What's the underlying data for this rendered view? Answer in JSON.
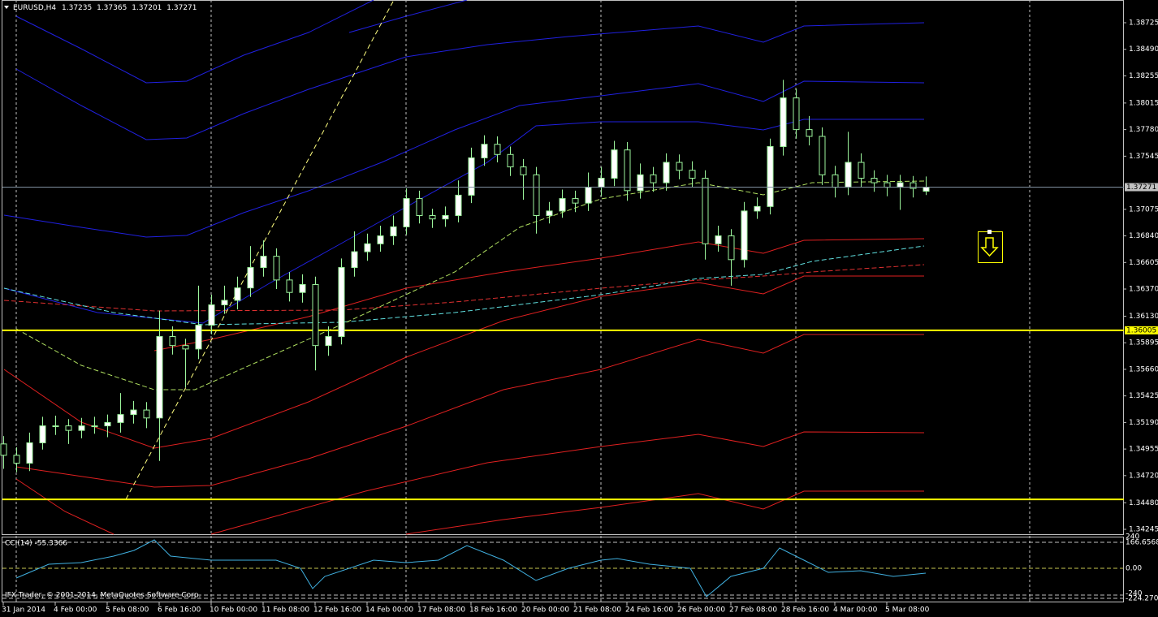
{
  "chart_data": {
    "type": "candlestick",
    "title": "EURUSD,H4",
    "categories": [
      "31 Jan 2014",
      "4 Feb 00:00",
      "5 Feb 08:00",
      "6 Feb 16:00",
      "10 Feb 00:00",
      "11 Feb 08:00",
      "12 Feb 16:00",
      "14 Feb 00:00",
      "17 Feb 08:00",
      "18 Feb 16:00",
      "20 Feb 00:00",
      "21 Feb 08:00",
      "24 Feb 16:00",
      "26 Feb 00:00",
      "27 Feb 08:00",
      "28 Feb 16:00",
      "4 Mar 00:00",
      "5 Mar 08:00"
    ],
    "open": [
      1.35,
      1.349,
      1.3483,
      1.3501,
      1.3516,
      1.3516,
      1.3512,
      1.3516,
      1.3516,
      1.3519,
      1.3526,
      1.353,
      1.3523,
      1.3595,
      1.3587,
      1.3584,
      1.3605,
      1.3623,
      1.3627,
      1.3638,
      1.3656,
      1.3666,
      1.3645,
      1.3634,
      1.3641,
      1.3587,
      1.3595,
      1.3656,
      1.367,
      1.3677,
      1.3684,
      1.3692,
      1.3717,
      1.3702,
      1.3699,
      1.3702,
      1.372,
      1.3753,
      1.3765,
      1.3756,
      1.3745,
      1.3738,
      1.3702,
      1.3706,
      1.3717,
      1.3713,
      1.3727,
      1.3735,
      1.376,
      1.3724,
      1.3738,
      1.3731,
      1.3749,
      1.3742,
      1.3735,
      1.3677,
      1.3684,
      1.3663,
      1.3706,
      1.371,
      1.3763,
      1.3806,
      1.3778,
      1.3772,
      1.3738,
      1.3727,
      1.3749,
      1.3735,
      1.3731,
      1.3727,
      1.3731,
      1.37235
    ],
    "high": [
      1.3507,
      1.3497,
      1.351,
      1.3524,
      1.3525,
      1.3522,
      1.3523,
      1.3524,
      1.3526,
      1.3545,
      1.3538,
      1.3537,
      1.3618,
      1.3604,
      1.3593,
      1.364,
      1.3632,
      1.364,
      1.3648,
      1.3675,
      1.368,
      1.3673,
      1.3652,
      1.365,
      1.3648,
      1.3604,
      1.3664,
      1.3688,
      1.3686,
      1.3693,
      1.3702,
      1.3726,
      1.3724,
      1.3708,
      1.371,
      1.3733,
      1.3762,
      1.3773,
      1.3772,
      1.3763,
      1.3752,
      1.3745,
      1.3714,
      1.3725,
      1.3724,
      1.374,
      1.3745,
      1.3768,
      1.3767,
      1.3748,
      1.3745,
      1.3757,
      1.3756,
      1.375,
      1.3742,
      1.3693,
      1.369,
      1.3714,
      1.3718,
      1.377,
      1.3822,
      1.3814,
      1.379,
      1.378,
      1.3746,
      1.3776,
      1.3757,
      1.3742,
      1.3738,
      1.3738,
      1.3737,
      1.37365
    ],
    "low": [
      1.3478,
      1.3475,
      1.3476,
      1.3495,
      1.3508,
      1.35,
      1.3505,
      1.3509,
      1.3506,
      1.351,
      1.3518,
      1.3514,
      1.3485,
      1.3579,
      1.355,
      1.3575,
      1.3597,
      1.3615,
      1.3619,
      1.363,
      1.3648,
      1.3637,
      1.3626,
      1.3625,
      1.3565,
      1.3578,
      1.3588,
      1.3648,
      1.3662,
      1.367,
      1.3676,
      1.3685,
      1.3695,
      1.3691,
      1.3692,
      1.3696,
      1.3713,
      1.3746,
      1.3749,
      1.3737,
      1.3716,
      1.3686,
      1.3695,
      1.37,
      1.3705,
      1.3706,
      1.3719,
      1.3728,
      1.3715,
      1.3717,
      1.3723,
      1.3724,
      1.3734,
      1.3727,
      1.3663,
      1.367,
      1.364,
      1.3656,
      1.3699,
      1.3703,
      1.3755,
      1.377,
      1.3764,
      1.3729,
      1.3718,
      1.372,
      1.3727,
      1.3723,
      1.3719,
      1.3707,
      1.3718,
      1.37201
    ],
    "close": [
      1.349,
      1.3483,
      1.3501,
      1.3516,
      1.3516,
      1.3512,
      1.3516,
      1.3516,
      1.3519,
      1.3526,
      1.353,
      1.3523,
      1.3595,
      1.3587,
      1.3584,
      1.3605,
      1.3623,
      1.3627,
      1.3638,
      1.3656,
      1.3666,
      1.3645,
      1.3634,
      1.3641,
      1.3587,
      1.3595,
      1.3656,
      1.367,
      1.3677,
      1.3684,
      1.3692,
      1.3717,
      1.3702,
      1.3699,
      1.3702,
      1.372,
      1.3753,
      1.3765,
      1.3756,
      1.3745,
      1.3738,
      1.3702,
      1.3706,
      1.3717,
      1.3713,
      1.3727,
      1.3735,
      1.376,
      1.3724,
      1.3738,
      1.3731,
      1.3749,
      1.3742,
      1.3735,
      1.3677,
      1.3684,
      1.3663,
      1.3706,
      1.371,
      1.3763,
      1.3806,
      1.3778,
      1.3772,
      1.3738,
      1.3727,
      1.3749,
      1.3735,
      1.3731,
      1.3727,
      1.3731,
      1.3726,
      1.37271
    ],
    "up_color": "#ffffff",
    "down_color": "#000000",
    "wick_color": "#9cf59c",
    "ylim": [
      1.34202,
      1.38926
    ],
    "yticks": [
      1.38725,
      {
        "value": 1.3849,
        "label": "1.38490"
      },
      1.38255,
      1.38015,
      {
        "value": 1.3778,
        "label": "1.37780"
      },
      1.37545,
      1.37075,
      {
        "value": 1.3684,
        "label": "1.36840"
      },
      1.36605,
      {
        "value": 1.3637,
        "label": "1.36370"
      },
      {
        "value": 1.3613,
        "label": "1.36130"
      },
      1.35895,
      {
        "value": 1.3566,
        "label": "1.35660"
      },
      1.35425,
      {
        "value": 1.3519,
        "label": "1.35190"
      },
      1.34955,
      {
        "value": 1.3472,
        "label": "1.34720"
      },
      {
        "value": 1.3448,
        "label": "1.34480"
      },
      1.34245
    ],
    "levels": [
      {
        "value": 1.36005,
        "label": "1.36005"
      },
      {
        "value": 1.3451
      }
    ],
    "level_color": "#ffff00"
  },
  "indicator": {
    "label": "CCI(14) -55.3366",
    "axis_labels": [
      "240",
      "166.6568",
      "0.00",
      "-240",
      "-224.2706"
    ]
  },
  "footer": "IFX Trader, © 2001-2014, MetaQuotes Software Corp."
}
